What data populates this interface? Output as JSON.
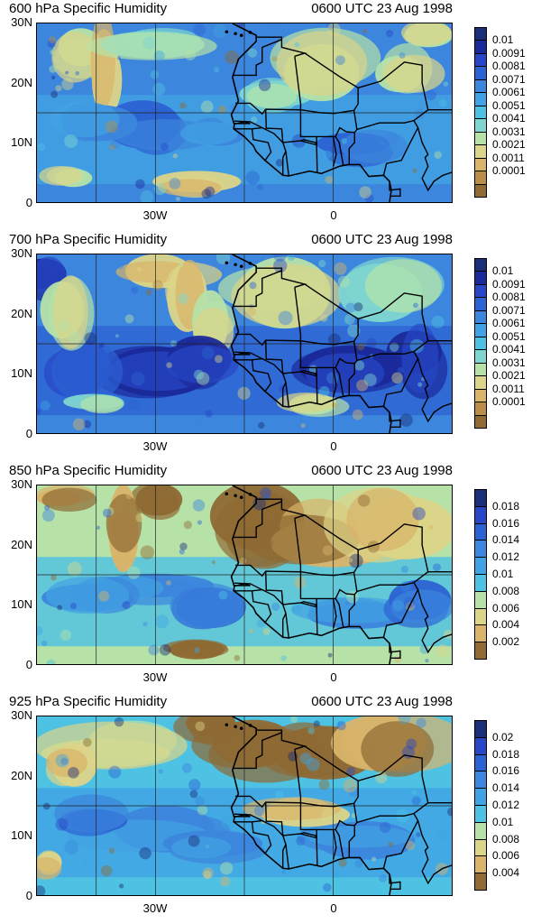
{
  "panels": [
    {
      "title": "600 hPa Specific Humidity",
      "time": "0600 UTC 23 Aug 1998",
      "legend_labels": [
        "0.01",
        "0.0091",
        "0.0081",
        "0.0071",
        "0.0061",
        "0.0051",
        "0.0041",
        "0.0031",
        "0.0021",
        "0.0011",
        "0.0001"
      ],
      "humidity_pattern": "mostly light blue with tan patches over Sahara and northwest",
      "colors": [
        "#1a2f77",
        "#1b2a9a",
        "#2747c6",
        "#2c63d3",
        "#3c86dd",
        "#41a3e3",
        "#4ec2e3",
        "#7fd6cf",
        "#b6e2a8",
        "#dcd488",
        "#d9b46a",
        "#b88e48",
        "#8f6a33"
      ]
    },
    {
      "title": "700 hPa Specific Humidity",
      "time": "0600 UTC 23 Aug 1998",
      "legend_labels": [
        "0.01",
        "0.0091",
        "0.0081",
        "0.0071",
        "0.0061",
        "0.0051",
        "0.0041",
        "0.0031",
        "0.0021",
        "0.0011",
        "0.0001"
      ],
      "humidity_pattern": "dark blue band across tropics, tan dry tongue from northwest",
      "colors": [
        "#1a2f77",
        "#1b2a9a",
        "#2747c6",
        "#2c63d3",
        "#3c86dd",
        "#41a3e3",
        "#4ec2e3",
        "#7fd6cf",
        "#b6e2a8",
        "#dcd488",
        "#d9b46a",
        "#b88e48",
        "#8f6a33"
      ]
    },
    {
      "title": "850 hPa Specific Humidity",
      "time": "0600 UTC 23 Aug 1998",
      "legend_labels": [
        "0.018",
        "0.016",
        "0.014",
        "0.012",
        "0.01",
        "0.008",
        "0.006",
        "0.004",
        "0.002"
      ],
      "humidity_pattern": "tan Sahara in north, blue ocean and Guinea coast in south",
      "colors": [
        "#1a2f77",
        "#2747c6",
        "#2c63d3",
        "#3c86dd",
        "#41a3e3",
        "#4ec2e3",
        "#b6e2a8",
        "#dcd488",
        "#d9b46a",
        "#8f6a33"
      ]
    },
    {
      "title": "925 hPa Specific Humidity",
      "time": "0600 UTC 23 Aug 1998",
      "legend_labels": [
        "0.02",
        "0.018",
        "0.016",
        "0.014",
        "0.012",
        "0.01",
        "0.008",
        "0.006",
        "0.004"
      ],
      "humidity_pattern": "dark brown Sahara, cyan/blue ocean south of 20N",
      "colors": [
        "#1a2f77",
        "#2747c6",
        "#2c63d3",
        "#3c86dd",
        "#41a3e3",
        "#4ec2e3",
        "#b6e2a8",
        "#dcd488",
        "#d9b46a",
        "#8f6a33"
      ]
    }
  ],
  "axis": {
    "y_labels": [
      "30N",
      "20N",
      "10N",
      "0"
    ],
    "x_labels": [
      "30W",
      "0"
    ]
  }
}
